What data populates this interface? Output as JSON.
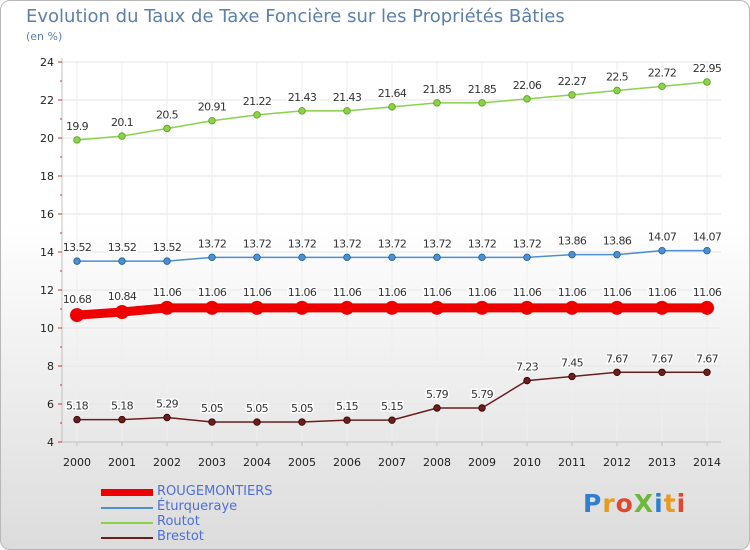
{
  "title": "Evolution du Taux de Taxe Foncière sur les Propriétés Bâties",
  "unit": "(en %)",
  "logo": "ProXiti",
  "chart_data": {
    "type": "line",
    "title": "Evolution du Taux de Taxe Foncière sur les Propriétés Bâties",
    "ylabel": "(en %)",
    "xlabel": "",
    "ylim": [
      4,
      24
    ],
    "yticks": [
      "4",
      "6",
      "8",
      "10",
      "12",
      "14",
      "16",
      "18",
      "20",
      "22",
      "24"
    ],
    "categories": [
      "2000",
      "2001",
      "2002",
      "2003",
      "2004",
      "2005",
      "2006",
      "2007",
      "2008",
      "2009",
      "2010",
      "2011",
      "2012",
      "2013",
      "2014"
    ],
    "series": [
      {
        "name": "ROUGEMONTIERS",
        "color": "#ee0000",
        "values": [
          10.68,
          10.84,
          11.06,
          11.06,
          11.06,
          11.06,
          11.06,
          11.06,
          11.06,
          11.06,
          11.06,
          11.06,
          11.06,
          11.06,
          11.06
        ],
        "labels": [
          "10.68",
          "10.84",
          "11.06",
          "11.06",
          "11.06",
          "11.06",
          "11.06",
          "11.06",
          "11.06",
          "11.06",
          "11.06",
          "11.06",
          "11.06",
          "11.06",
          "11.06"
        ]
      },
      {
        "name": "Éturqueraye",
        "color": "#4d8fcf",
        "values": [
          13.52,
          13.52,
          13.52,
          13.72,
          13.72,
          13.72,
          13.72,
          13.72,
          13.72,
          13.72,
          13.72,
          13.86,
          13.86,
          14.07,
          14.07
        ],
        "labels": [
          "13.52",
          "13.52",
          "13.52",
          "13.72",
          "13.72",
          "13.72",
          "13.72",
          "13.72",
          "13.72",
          "13.72",
          "13.72",
          "13.86",
          "13.86",
          "14.07",
          "14.07"
        ]
      },
      {
        "name": "Routot",
        "color": "#8bd14a",
        "values": [
          19.9,
          20.1,
          20.5,
          20.91,
          21.22,
          21.43,
          21.43,
          21.64,
          21.85,
          21.85,
          22.06,
          22.27,
          22.5,
          22.72,
          22.95
        ],
        "labels": [
          "19.9",
          "20.1",
          "20.5",
          "20.91",
          "21.22",
          "21.43",
          "21.43",
          "21.64",
          "21.85",
          "21.85",
          "22.06",
          "22.27",
          "22.5",
          "22.72",
          "22.95"
        ]
      },
      {
        "name": "Brestot",
        "color": "#6a1e1e",
        "values": [
          5.18,
          5.18,
          5.29,
          5.05,
          5.05,
          5.05,
          5.15,
          5.15,
          5.79,
          5.79,
          7.23,
          7.45,
          7.67,
          7.67,
          7.67
        ],
        "labels": [
          "5.18",
          "5.18",
          "5.29",
          "5.05",
          "5.05",
          "5.05",
          "5.15",
          "5.15",
          "5.79",
          "5.79",
          "7.23",
          "7.45",
          "7.67",
          "7.67",
          "7.67"
        ]
      }
    ],
    "legend_position": "bottom-left"
  }
}
